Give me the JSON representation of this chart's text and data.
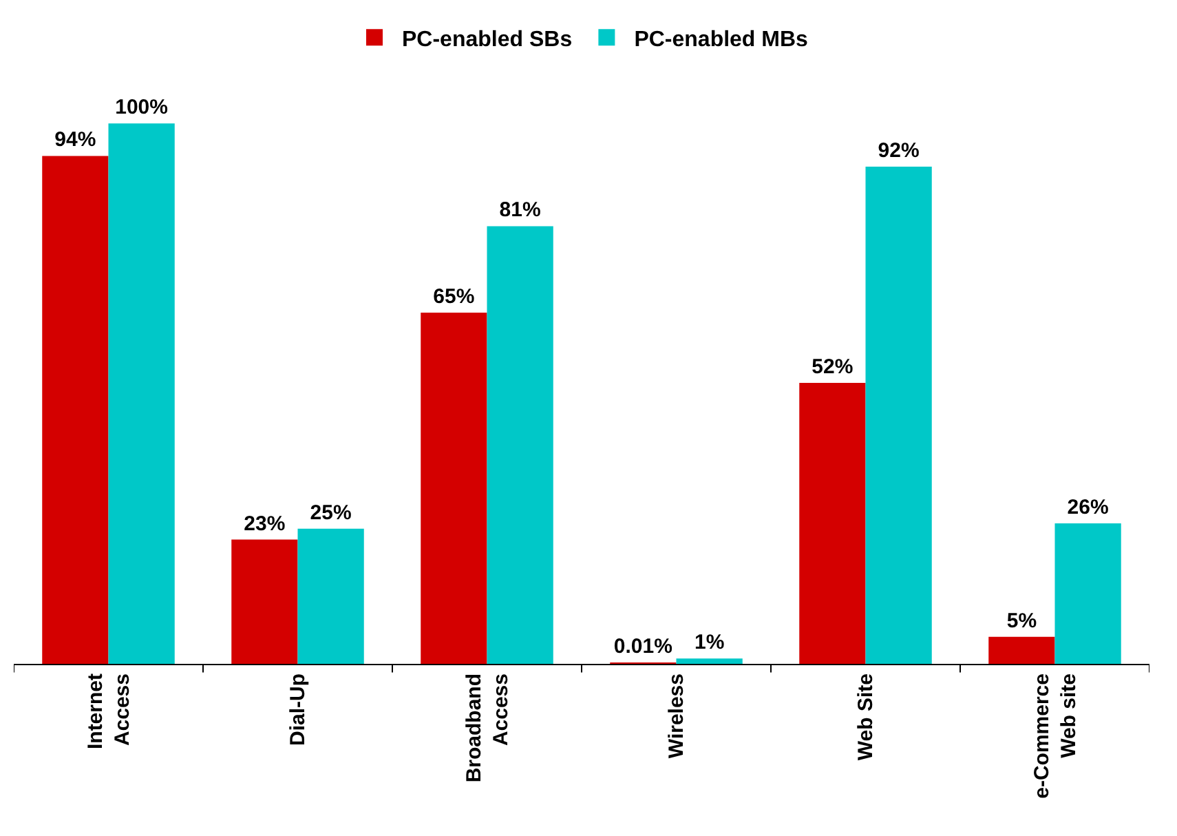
{
  "chart_data": {
    "type": "bar",
    "categories": [
      "Internet\nAccess",
      "Dial-Up",
      "Broadband\nAccess",
      "Wireless",
      "Web Site",
      "e-Commerce\nWeb site"
    ],
    "series": [
      {
        "name": "PC-enabled SBs",
        "color": "#d40000",
        "values": [
          94,
          23,
          65,
          0.01,
          52,
          5
        ],
        "value_labels": [
          "94%",
          "23%",
          "65%",
          "0.01%",
          "52%",
          "5%"
        ]
      },
      {
        "name": "PC-enabled MBs",
        "color": "#00c8c8",
        "values": [
          100,
          25,
          81,
          1,
          92,
          26
        ],
        "value_labels": [
          "100%",
          "25%",
          "81%",
          "1%",
          "92%",
          "26%"
        ]
      }
    ],
    "legend": "top"
  }
}
